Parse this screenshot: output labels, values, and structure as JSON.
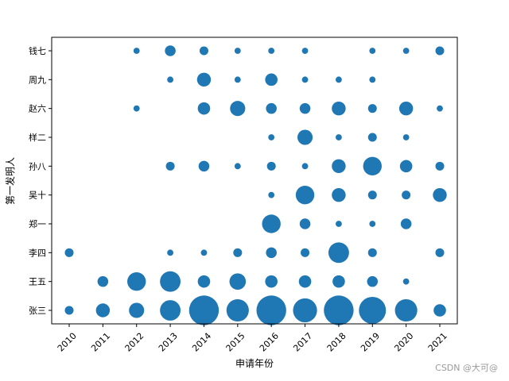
{
  "chart_data": {
    "type": "scatter",
    "title": "",
    "xlabel": "申请年份",
    "ylabel": "第一发明人",
    "x_categories": [
      "2010",
      "2011",
      "2012",
      "2013",
      "2014",
      "2015",
      "2016",
      "2017",
      "2018",
      "2019",
      "2020",
      "2021"
    ],
    "y_categories": [
      "张三",
      "王五",
      "李四",
      "郑一",
      "吴十",
      "孙八",
      "样二",
      "赵六",
      "周九",
      "钱七"
    ],
    "marker_color": "#1f77b4",
    "size_encoding": "patent count per inventor per year",
    "points": [
      {
        "x": "2012",
        "y": "钱七",
        "value": 1
      },
      {
        "x": "2013",
        "y": "钱七",
        "value": 3
      },
      {
        "x": "2014",
        "y": "钱七",
        "value": 2
      },
      {
        "x": "2015",
        "y": "钱七",
        "value": 1
      },
      {
        "x": "2016",
        "y": "钱七",
        "value": 1
      },
      {
        "x": "2017",
        "y": "钱七",
        "value": 1
      },
      {
        "x": "2019",
        "y": "钱七",
        "value": 1
      },
      {
        "x": "2020",
        "y": "钱七",
        "value": 1
      },
      {
        "x": "2021",
        "y": "钱七",
        "value": 2
      },
      {
        "x": "2013",
        "y": "周九",
        "value": 1
      },
      {
        "x": "2014",
        "y": "周九",
        "value": 5
      },
      {
        "x": "2015",
        "y": "周九",
        "value": 1
      },
      {
        "x": "2016",
        "y": "周九",
        "value": 4
      },
      {
        "x": "2017",
        "y": "周九",
        "value": 1
      },
      {
        "x": "2018",
        "y": "周九",
        "value": 1
      },
      {
        "x": "2019",
        "y": "周九",
        "value": 1
      },
      {
        "x": "2012",
        "y": "赵六",
        "value": 1
      },
      {
        "x": "2014",
        "y": "赵六",
        "value": 4
      },
      {
        "x": "2015",
        "y": "赵六",
        "value": 6
      },
      {
        "x": "2016",
        "y": "赵六",
        "value": 3
      },
      {
        "x": "2017",
        "y": "赵六",
        "value": 3
      },
      {
        "x": "2018",
        "y": "赵六",
        "value": 5
      },
      {
        "x": "2019",
        "y": "赵六",
        "value": 2
      },
      {
        "x": "2020",
        "y": "赵六",
        "value": 5
      },
      {
        "x": "2021",
        "y": "赵六",
        "value": 1
      },
      {
        "x": "2016",
        "y": "样二",
        "value": 1
      },
      {
        "x": "2017",
        "y": "样二",
        "value": 6
      },
      {
        "x": "2018",
        "y": "样二",
        "value": 1
      },
      {
        "x": "2019",
        "y": "样二",
        "value": 2
      },
      {
        "x": "2020",
        "y": "样二",
        "value": 1
      },
      {
        "x": "2013",
        "y": "孙八",
        "value": 2
      },
      {
        "x": "2014",
        "y": "孙八",
        "value": 3
      },
      {
        "x": "2015",
        "y": "孙八",
        "value": 1
      },
      {
        "x": "2016",
        "y": "孙八",
        "value": 2
      },
      {
        "x": "2017",
        "y": "孙八",
        "value": 1
      },
      {
        "x": "2018",
        "y": "孙八",
        "value": 5
      },
      {
        "x": "2019",
        "y": "孙八",
        "value": 9
      },
      {
        "x": "2020",
        "y": "孙八",
        "value": 4
      },
      {
        "x": "2021",
        "y": "孙八",
        "value": 2
      },
      {
        "x": "2016",
        "y": "吴十",
        "value": 1
      },
      {
        "x": "2017",
        "y": "吴十",
        "value": 9
      },
      {
        "x": "2018",
        "y": "吴十",
        "value": 5
      },
      {
        "x": "2019",
        "y": "吴十",
        "value": 2
      },
      {
        "x": "2020",
        "y": "吴十",
        "value": 2
      },
      {
        "x": "2021",
        "y": "吴十",
        "value": 5
      },
      {
        "x": "2016",
        "y": "郑一",
        "value": 9
      },
      {
        "x": "2017",
        "y": "郑一",
        "value": 3
      },
      {
        "x": "2018",
        "y": "郑一",
        "value": 1
      },
      {
        "x": "2019",
        "y": "郑一",
        "value": 1
      },
      {
        "x": "2020",
        "y": "郑一",
        "value": 3
      },
      {
        "x": "2010",
        "y": "李四",
        "value": 2
      },
      {
        "x": "2013",
        "y": "李四",
        "value": 1
      },
      {
        "x": "2014",
        "y": "李四",
        "value": 1
      },
      {
        "x": "2015",
        "y": "李四",
        "value": 2
      },
      {
        "x": "2016",
        "y": "李四",
        "value": 3
      },
      {
        "x": "2017",
        "y": "李四",
        "value": 2
      },
      {
        "x": "2018",
        "y": "李四",
        "value": 11
      },
      {
        "x": "2019",
        "y": "李四",
        "value": 2
      },
      {
        "x": "2021",
        "y": "李四",
        "value": 2
      },
      {
        "x": "2011",
        "y": "王五",
        "value": 3
      },
      {
        "x": "2012",
        "y": "王五",
        "value": 9
      },
      {
        "x": "2013",
        "y": "王五",
        "value": 11
      },
      {
        "x": "2014",
        "y": "王五",
        "value": 4
      },
      {
        "x": "2015",
        "y": "王五",
        "value": 7
      },
      {
        "x": "2016",
        "y": "王五",
        "value": 4
      },
      {
        "x": "2017",
        "y": "王五",
        "value": 4
      },
      {
        "x": "2018",
        "y": "王五",
        "value": 4
      },
      {
        "x": "2019",
        "y": "王五",
        "value": 3
      },
      {
        "x": "2020",
        "y": "王五",
        "value": 1
      },
      {
        "x": "2010",
        "y": "张三",
        "value": 2
      },
      {
        "x": "2011",
        "y": "张三",
        "value": 5
      },
      {
        "x": "2012",
        "y": "张三",
        "value": 6
      },
      {
        "x": "2013",
        "y": "张三",
        "value": 11
      },
      {
        "x": "2014",
        "y": "张三",
        "value": 23
      },
      {
        "x": "2015",
        "y": "张三",
        "value": 13
      },
      {
        "x": "2016",
        "y": "张三",
        "value": 23
      },
      {
        "x": "2017",
        "y": "张三",
        "value": 15
      },
      {
        "x": "2018",
        "y": "张三",
        "value": 23
      },
      {
        "x": "2019",
        "y": "张三",
        "value": 19
      },
      {
        "x": "2020",
        "y": "张三",
        "value": 13
      },
      {
        "x": "2021",
        "y": "张三",
        "value": 4
      }
    ],
    "grid": false,
    "legend": "none"
  },
  "watermark": "CSDN @大可@"
}
